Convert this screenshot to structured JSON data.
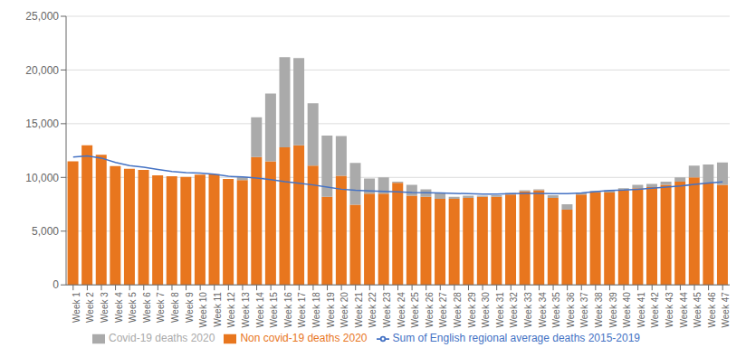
{
  "chart_data": {
    "type": "bar",
    "stacked": true,
    "grid": true,
    "legend": "bottom",
    "categories": [
      "Week 1",
      "Week 2",
      "Week 3",
      "Week 4",
      "Week 5",
      "Week 6",
      "Week 7",
      "Week 8",
      "Week 9",
      "Week 10",
      "Week 11",
      "Week 12",
      "Week 13",
      "Week 14",
      "Week 15",
      "Week 16",
      "Week 17",
      "Week 18",
      "Week 19",
      "Week 20",
      "Week 21",
      "Week 22",
      "Week 23",
      "Week 24",
      "Week 25",
      "Week 26",
      "Week 27",
      "Week 28",
      "Week 29",
      "Week 30",
      "Week 31",
      "Week 32",
      "Week 33",
      "Week 34",
      "Week 35",
      "Week 36",
      "Week 37",
      "Week 38",
      "Week 39",
      "Week 40",
      "Week 41",
      "Week 42",
      "Week 43",
      "Week 44",
      "Week 45",
      "Week 46",
      "Week 47"
    ],
    "series": [
      {
        "name": "Non covid-19 deaths 2020",
        "color": "#E8761E",
        "type": "bar",
        "values": [
          11500,
          13000,
          12100,
          11050,
          10800,
          10700,
          10200,
          10100,
          10050,
          10250,
          10300,
          9850,
          9750,
          11900,
          11500,
          12800,
          13000,
          11100,
          8200,
          10150,
          7450,
          8500,
          8500,
          9500,
          8300,
          8200,
          8000,
          8000,
          8100,
          8200,
          8200,
          8400,
          8700,
          8800,
          8100,
          7000,
          8400,
          8600,
          8600,
          8800,
          9000,
          9100,
          9300,
          9600,
          10000,
          9500,
          9300
        ]
      },
      {
        "name": "Covid-19 deaths 2020",
        "color": "#AAAAAA",
        "type": "bar",
        "values": [
          0,
          0,
          0,
          0,
          0,
          0,
          0,
          0,
          0,
          0,
          0,
          0,
          300,
          3700,
          6300,
          8400,
          8100,
          5800,
          5700,
          3700,
          3900,
          1400,
          1500,
          100,
          1000,
          700,
          600,
          200,
          200,
          100,
          150,
          150,
          100,
          100,
          250,
          500,
          200,
          150,
          200,
          200,
          300,
          300,
          300,
          400,
          1100,
          1700,
          2100
        ]
      },
      {
        "name": "Sum of English regional average deaths 2015-2019",
        "color": "#4472C4",
        "type": "line",
        "values": [
          11900,
          12000,
          11800,
          11400,
          11100,
          10950,
          10750,
          10550,
          10450,
          10400,
          10300,
          10100,
          10050,
          9950,
          9800,
          9600,
          9450,
          9300,
          9100,
          8900,
          8800,
          8750,
          8700,
          8650,
          8600,
          8580,
          8560,
          8520,
          8480,
          8440,
          8450,
          8480,
          8520,
          8520,
          8480,
          8480,
          8550,
          8680,
          8780,
          8820,
          8900,
          9000,
          9100,
          9200,
          9350,
          9480,
          9580
        ]
      }
    ],
    "ylim": [
      0,
      25000
    ],
    "yticks": [
      0,
      {
        "value": 5000,
        "label": "5,000"
      },
      {
        "value": 10000,
        "label": "10,000"
      },
      {
        "value": 15000,
        "label": "15,000"
      },
      {
        "value": 20000,
        "label": "20,000"
      },
      {
        "value": 25000,
        "label": "25,000"
      }
    ]
  }
}
